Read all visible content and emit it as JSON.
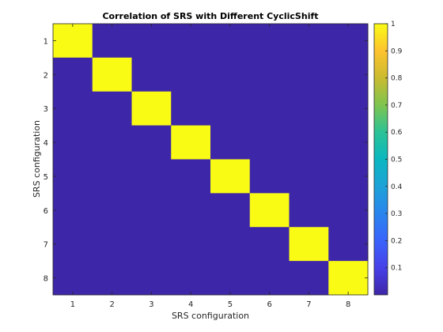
{
  "chart_data": {
    "type": "heatmap",
    "title": "Correlation of SRS with Different CyclicShift",
    "xlabel": "SRS configuration",
    "ylabel": "SRS configuration",
    "x_categories": [
      "1",
      "2",
      "3",
      "4",
      "5",
      "6",
      "7",
      "8"
    ],
    "y_categories": [
      "1",
      "2",
      "3",
      "4",
      "5",
      "6",
      "7",
      "8"
    ],
    "values": [
      [
        1,
        0,
        0,
        0,
        0,
        0,
        0,
        0
      ],
      [
        0,
        1,
        0,
        0,
        0,
        0,
        0,
        0
      ],
      [
        0,
        0,
        1,
        0,
        0,
        0,
        0,
        0
      ],
      [
        0,
        0,
        0,
        1,
        0,
        0,
        0,
        0
      ],
      [
        0,
        0,
        0,
        0,
        1,
        0,
        0,
        0
      ],
      [
        0,
        0,
        0,
        0,
        0,
        1,
        0,
        0
      ],
      [
        0,
        0,
        0,
        0,
        0,
        0,
        1,
        0
      ],
      [
        0,
        0,
        0,
        0,
        0,
        0,
        0,
        1
      ]
    ],
    "colormap": "parula",
    "colorbar": {
      "range": [
        0,
        1
      ],
      "ticks": [
        "0.1",
        "0.2",
        "0.3",
        "0.4",
        "0.5",
        "0.6",
        "0.7",
        "0.8",
        "0.9",
        "1"
      ],
      "tick_values": [
        0.1,
        0.2,
        0.3,
        0.4,
        0.5,
        0.6,
        0.7,
        0.8,
        0.9,
        1.0
      ]
    },
    "colors": {
      "low": "#3e26a8",
      "high": "#f9fb15"
    }
  }
}
